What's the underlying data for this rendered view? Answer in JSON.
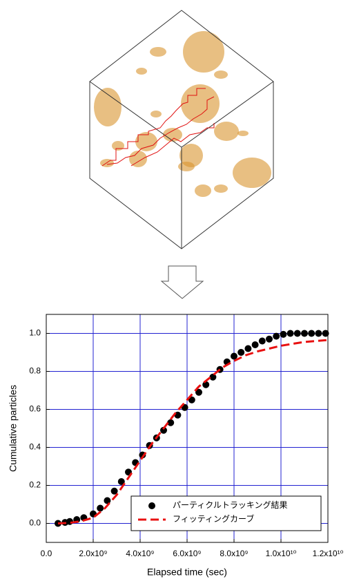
{
  "chart_data": {
    "type": "scatter",
    "xlabel": "Elapsed time (sec)",
    "ylabel": "Cumulative particles",
    "xlim": [
      0,
      12000000000
    ],
    "ylim": [
      -0.1,
      1.1
    ],
    "xticks": [
      {
        "value": 0,
        "label": "0.0"
      },
      {
        "value": 2000000000,
        "label": "2.0x10⁹"
      },
      {
        "value": 4000000000,
        "label": "4.0x10⁹"
      },
      {
        "value": 6000000000,
        "label": "6.0x10⁹"
      },
      {
        "value": 8000000000,
        "label": "8.0x10⁹"
      },
      {
        "value": 10000000000,
        "label": "1.0x10¹⁰"
      },
      {
        "value": 12000000000,
        "label": "1.2x10¹⁰"
      }
    ],
    "yticks": [
      {
        "value": 0,
        "label": "0.0"
      },
      0.2,
      0.4,
      0.6,
      0.8,
      {
        "value": 1,
        "label": "1.0"
      }
    ],
    "grid": true,
    "grid_color": "#2020d0",
    "legend": "lower right",
    "series": [
      {
        "name": "パーティクルトラッキング結果",
        "type": "scatter",
        "color": "#000000",
        "x": [
          500000000,
          800000000,
          1000000000,
          1300000000,
          1600000000,
          2000000000,
          2300000000,
          2600000000,
          2900000000,
          3200000000,
          3500000000,
          3800000000,
          4100000000,
          4400000000,
          4700000000,
          5000000000,
          5300000000,
          5600000000,
          5900000000,
          6200000000,
          6500000000,
          6800000000,
          7100000000,
          7400000000,
          7700000000,
          8000000000,
          8300000000,
          8600000000,
          8900000000,
          9200000000,
          9500000000,
          9800000000,
          10100000000,
          10400000000,
          10700000000,
          11000000000,
          11300000000,
          11600000000,
          11900000000
        ],
        "values": [
          0,
          0.005,
          0.01,
          0.02,
          0.03,
          0.05,
          0.08,
          0.12,
          0.17,
          0.22,
          0.27,
          0.32,
          0.36,
          0.41,
          0.45,
          0.49,
          0.53,
          0.57,
          0.61,
          0.65,
          0.69,
          0.73,
          0.77,
          0.81,
          0.85,
          0.88,
          0.9,
          0.92,
          0.94,
          0.96,
          0.97,
          0.985,
          0.995,
          1,
          1,
          1,
          1,
          1,
          1
        ]
      },
      {
        "name": "フィッティングカーブ",
        "type": "line",
        "color": "#e81010",
        "x": [
          500000000,
          1000000000,
          1500000000,
          2000000000,
          2500000000,
          3000000000,
          3500000000,
          4000000000,
          4500000000,
          5000000000,
          5500000000,
          6000000000,
          6500000000,
          7000000000,
          7500000000,
          8000000000,
          8500000000,
          9000000000,
          9500000000,
          10000000000,
          10500000000,
          11000000000,
          11500000000,
          12000000000
        ],
        "values": [
          0,
          0.003,
          0.012,
          0.03,
          0.08,
          0.15,
          0.24,
          0.33,
          0.42,
          0.5,
          0.58,
          0.65,
          0.72,
          0.77,
          0.82,
          0.855,
          0.885,
          0.905,
          0.92,
          0.935,
          0.945,
          0.955,
          0.96,
          0.965
        ]
      }
    ]
  }
}
